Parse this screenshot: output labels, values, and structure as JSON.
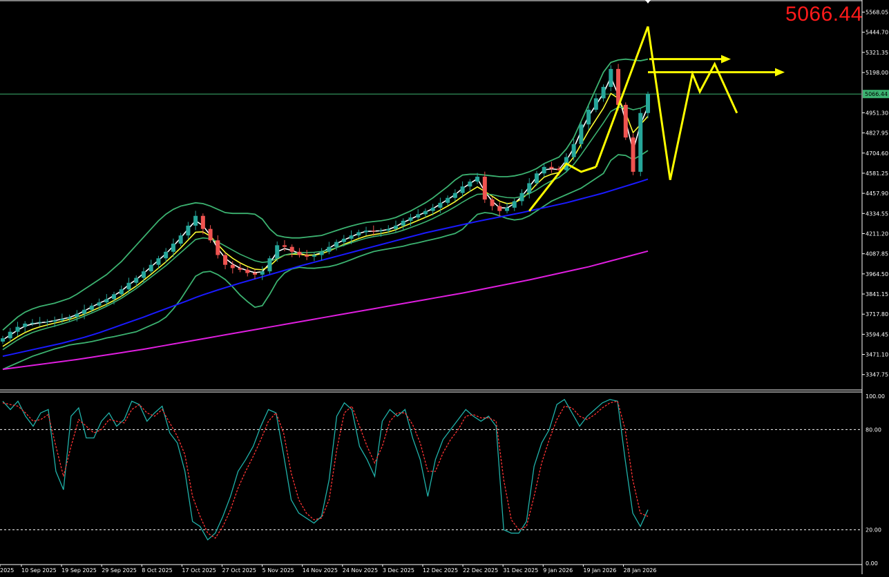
{
  "current_price_label": "5066.44",
  "colors": {
    "background": "#000000",
    "axis_text": "#ffffff",
    "bull_candle": "#26a69a",
    "bear_candle": "#ef5350",
    "ema_fast": "#ffffff",
    "ema_mid": "#ffff33",
    "bollinger": "#3cb371",
    "sma_slow": "#1a1aff",
    "sma_slower": "#e01ee0",
    "annotation": "#ffff00",
    "price_line": "#3cb371",
    "stoch_main": "#20b2aa",
    "stoch_signal": "#ff3333"
  },
  "chart_data": [
    {
      "type": "candlestick",
      "price_axis_ticks": [
        "5568.05",
        "5444.70",
        "5321.35",
        "5198.00",
        "4951.30",
        "4827.95",
        "4704.60",
        "4581.25",
        "4457.90",
        "4334.55",
        "4211.20",
        "4087.85",
        "3964.50",
        "3841.15",
        "3717.80",
        "3594.45",
        "3471.10",
        "3347.75"
      ],
      "price_marker": "5066.44",
      "ylim": [
        3300,
        5600
      ],
      "date_labels": [
        "2025",
        "10 Sep 2025",
        "19 Sep 2025",
        "29 Sep 2025",
        "8 Oct 2025",
        "17 Oct 2025",
        "27 Oct 2025",
        "5 Nov 2025",
        "14 Nov 2025",
        "24 Nov 2025",
        "3 Dec 2025",
        "12 Dec 2025",
        "22 Dec 2025",
        "31 Dec 2025",
        "9 Jan 2026",
        "19 Jan 2026",
        "28 Jan 2026"
      ],
      "series": [
        {
          "role": "close",
          "values": [
            3570,
            3610,
            3640,
            3660,
            3665,
            3670,
            3672,
            3680,
            3690,
            3700,
            3720,
            3745,
            3770,
            3790,
            3810,
            3840,
            3870,
            3910,
            3940,
            3980,
            4020,
            4060,
            4100,
            4150,
            4200,
            4260,
            4320,
            4240,
            4170,
            4080,
            4020,
            4000,
            3990,
            3970,
            3960,
            3980,
            4060,
            4140,
            4130,
            4100,
            4080,
            4070,
            4080,
            4100,
            4130,
            4160,
            4180,
            4200,
            4220,
            4230,
            4225,
            4230,
            4240,
            4260,
            4290,
            4310,
            4330,
            4350,
            4370,
            4400,
            4430,
            4460,
            4500,
            4530,
            4560,
            4420,
            4380,
            4350,
            4370,
            4410,
            4460,
            4520,
            4580,
            4620,
            4610,
            4600,
            4680,
            4760,
            4880,
            4970,
            5040,
            5110,
            5220,
            5000,
            4800,
            4590,
            4950,
            5066
          ]
        },
        {
          "role": "ema_fast",
          "values": [
            3560,
            3590,
            3620,
            3645,
            3658,
            3665,
            3670,
            3678,
            3688,
            3698,
            3715,
            3738,
            3762,
            3785,
            3805,
            3832,
            3860,
            3898,
            3930,
            3968,
            4008,
            4048,
            4088,
            4135,
            4185,
            4240,
            4290,
            4260,
            4200,
            4120,
            4060,
            4025,
            4000,
            3985,
            3972,
            3978,
            4030,
            4100,
            4120,
            4108,
            4090,
            4078,
            4080,
            4095,
            4122,
            4150,
            4172,
            4192,
            4212,
            4225,
            4226,
            4229,
            4237,
            4254,
            4280,
            4300,
            4322,
            4343,
            4364,
            4392,
            4420,
            4450,
            4488,
            4518,
            4548,
            4470,
            4410,
            4370,
            4368,
            4396,
            4440,
            4498,
            4558,
            4602,
            4608,
            4603,
            4660,
            4735,
            4840,
            4930,
            5000,
            5070,
            5170,
            5060,
            4900,
            4720,
            4880,
            4990
          ]
        },
        {
          "role": "ema_mid",
          "values": [
            3520,
            3550,
            3580,
            3605,
            3625,
            3640,
            3652,
            3663,
            3674,
            3686,
            3700,
            3718,
            3738,
            3758,
            3778,
            3802,
            3828,
            3860,
            3890,
            3926,
            3962,
            4000,
            4038,
            4080,
            4124,
            4172,
            4220,
            4222,
            4195,
            4145,
            4095,
            4060,
            4032,
            4010,
            3993,
            3990,
            4012,
            4055,
            4080,
            4086,
            4084,
            4080,
            4080,
            4088,
            4105,
            4125,
            4145,
            4163,
            4181,
            4196,
            4205,
            4212,
            4221,
            4235,
            4255,
            4273,
            4292,
            4311,
            4331,
            4355,
            4380,
            4407,
            4440,
            4470,
            4498,
            4470,
            4440,
            4410,
            4395,
            4400,
            4425,
            4465,
            4515,
            4557,
            4575,
            4585,
            4625,
            4680,
            4760,
            4840,
            4910,
            4980,
            5070,
            5040,
            4950,
            4830,
            4880,
            4930
          ]
        },
        {
          "role": "bollinger_upper",
          "values": [
            3620,
            3660,
            3700,
            3730,
            3750,
            3765,
            3775,
            3785,
            3800,
            3815,
            3840,
            3870,
            3900,
            3930,
            3960,
            4000,
            4040,
            4090,
            4140,
            4190,
            4240,
            4290,
            4330,
            4360,
            4380,
            4390,
            4400,
            4395,
            4380,
            4360,
            4340,
            4335,
            4335,
            4335,
            4330,
            4300,
            4240,
            4200,
            4190,
            4185,
            4185,
            4190,
            4195,
            4200,
            4215,
            4230,
            4245,
            4258,
            4270,
            4280,
            4285,
            4290,
            4298,
            4310,
            4330,
            4350,
            4375,
            4400,
            4430,
            4465,
            4500,
            4540,
            4570,
            4575,
            4575,
            4570,
            4565,
            4560,
            4560,
            4565,
            4575,
            4590,
            4610,
            4640,
            4660,
            4680,
            4730,
            4800,
            4900,
            5000,
            5100,
            5200,
            5260,
            5275,
            5280,
            5275,
            5270,
            5280
          ]
        },
        {
          "role": "bollinger_mid",
          "values": [
            3500,
            3530,
            3560,
            3585,
            3605,
            3620,
            3633,
            3645,
            3658,
            3672,
            3688,
            3706,
            3725,
            3745,
            3766,
            3790,
            3815,
            3845,
            3875,
            3910,
            3945,
            3980,
            4015,
            4055,
            4095,
            4135,
            4175,
            4185,
            4180,
            4160,
            4135,
            4110,
            4085,
            4065,
            4045,
            4035,
            4040,
            4060,
            4080,
            4090,
            4095,
            4095,
            4097,
            4102,
            4112,
            4125,
            4140,
            4155,
            4170,
            4183,
            4193,
            4200,
            4208,
            4218,
            4232,
            4248,
            4265,
            4283,
            4303,
            4326,
            4350,
            4376,
            4404,
            4430,
            4452,
            4455,
            4450,
            4440,
            4432,
            4430,
            4438,
            4455,
            4480,
            4510,
            4535,
            4555,
            4590,
            4635,
            4695,
            4760,
            4825,
            4890,
            4960,
            4985,
            4985,
            4970,
            4980,
            5000
          ]
        },
        {
          "role": "bollinger_lower",
          "values": [
            3380,
            3400,
            3420,
            3440,
            3460,
            3475,
            3490,
            3505,
            3516,
            3529,
            3536,
            3542,
            3550,
            3560,
            3572,
            3580,
            3590,
            3600,
            3610,
            3630,
            3650,
            3670,
            3700,
            3750,
            3810,
            3880,
            3950,
            3975,
            3980,
            3960,
            3930,
            3885,
            3835,
            3795,
            3760,
            3770,
            3840,
            3920,
            3970,
            3995,
            4005,
            4000,
            3999,
            4004,
            4009,
            4020,
            4035,
            4052,
            4070,
            4086,
            4101,
            4110,
            4118,
            4126,
            4134,
            4146,
            4155,
            4166,
            4176,
            4187,
            4200,
            4212,
            4238,
            4285,
            4329,
            4340,
            4335,
            4320,
            4304,
            4295,
            4301,
            4320,
            4350,
            4380,
            4410,
            4430,
            4450,
            4470,
            4490,
            4520,
            4550,
            4580,
            4660,
            4695,
            4690,
            4665,
            4690,
            4720
          ]
        },
        {
          "role": "sma_slow",
          "values": [
            3460,
            3470,
            3480,
            3490,
            3500,
            3510,
            3520,
            3530,
            3540,
            3552,
            3564,
            3576,
            3590,
            3604,
            3620,
            3636,
            3652,
            3668,
            3684,
            3700,
            3717,
            3734,
            3751,
            3768,
            3785,
            3802,
            3820,
            3836,
            3851,
            3866,
            3880,
            3894,
            3908,
            3921,
            3934,
            3947,
            3960,
            3973,
            3986,
            3999,
            4012,
            4024,
            4036,
            4048,
            4060,
            4072,
            4084,
            4096,
            4108,
            4120,
            4132,
            4144,
            4156,
            4168,
            4180,
            4192,
            4204,
            4216,
            4226,
            4236,
            4246,
            4256,
            4266,
            4276,
            4286,
            4295,
            4304,
            4313,
            4322,
            4331,
            4340,
            4350,
            4360,
            4370,
            4380,
            4390,
            4400,
            4412,
            4424,
            4436,
            4448,
            4460,
            4474,
            4488,
            4502,
            4516,
            4530,
            4545
          ]
        },
        {
          "role": "sma_slower",
          "values": [
            3380,
            3386,
            3392,
            3398,
            3404,
            3410,
            3416,
            3422,
            3428,
            3434,
            3440,
            3447,
            3454,
            3461,
            3468,
            3475,
            3482,
            3489,
            3496,
            3503,
            3511,
            3519,
            3527,
            3535,
            3543,
            3551,
            3559,
            3567,
            3575,
            3583,
            3591,
            3599,
            3607,
            3615,
            3623,
            3631,
            3639,
            3647,
            3655,
            3663,
            3671,
            3679,
            3687,
            3695,
            3703,
            3711,
            3719,
            3727,
            3735,
            3743,
            3751,
            3759,
            3767,
            3775,
            3783,
            3791,
            3799,
            3807,
            3815,
            3823,
            3831,
            3839,
            3847,
            3856,
            3865,
            3874,
            3883,
            3892,
            3901,
            3910,
            3919,
            3928,
            3938,
            3948,
            3958,
            3968,
            3978,
            3988,
            3998,
            4008,
            4020,
            4032,
            4044,
            4056,
            4068,
            4080,
            4092,
            4104
          ]
        }
      ]
    },
    {
      "type": "line",
      "y_axis_ticks": [
        "100.00",
        "80.00",
        "20.00",
        "0.00"
      ],
      "levels": [
        80,
        20
      ],
      "ylim": [
        0,
        100
      ],
      "series": [
        {
          "role": "stochastic_main",
          "values": [
            97,
            92,
            97,
            88,
            82,
            90,
            92,
            55,
            44,
            88,
            93,
            75,
            75,
            85,
            90,
            82,
            86,
            97,
            95,
            85,
            90,
            94,
            78,
            72,
            55,
            25,
            22,
            14,
            18,
            28,
            40,
            55,
            62,
            70,
            82,
            92,
            90,
            65,
            38,
            30,
            27,
            24,
            28,
            50,
            88,
            96,
            92,
            70,
            62,
            52,
            85,
            92,
            88,
            92,
            75,
            62,
            40,
            62,
            74,
            80,
            86,
            92,
            88,
            85,
            88,
            82,
            20,
            18,
            18,
            25,
            58,
            72,
            80,
            95,
            98,
            90,
            82,
            88,
            92,
            96,
            98,
            97,
            62,
            30,
            22,
            32
          ]
        },
        {
          "role": "stochastic_signal",
          "values": [
            96,
            95,
            94,
            90,
            85,
            86,
            89,
            70,
            52,
            70,
            86,
            82,
            78,
            80,
            86,
            85,
            84,
            92,
            95,
            90,
            88,
            92,
            84,
            76,
            65,
            40,
            28,
            18,
            15,
            22,
            32,
            45,
            55,
            64,
            74,
            85,
            90,
            78,
            54,
            38,
            30,
            26,
            27,
            38,
            68,
            90,
            94,
            82,
            70,
            60,
            70,
            85,
            90,
            90,
            83,
            72,
            55,
            55,
            66,
            74,
            80,
            88,
            89,
            87,
            87,
            85,
            50,
            26,
            20,
            22,
            40,
            60,
            74,
            86,
            94,
            93,
            88,
            86,
            89,
            93,
            96,
            97,
            80,
            50,
            30,
            28
          ]
        }
      ]
    }
  ]
}
